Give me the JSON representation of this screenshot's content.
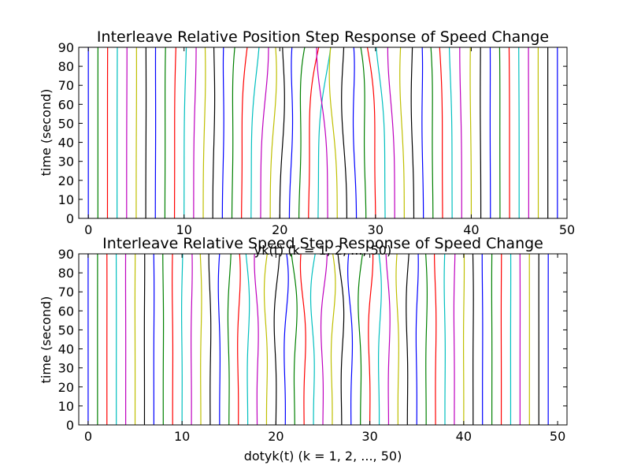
{
  "chart_data": [
    {
      "type": "line",
      "title": "Interleave Relative Position Step Response of Speed Change",
      "xlabel": "yk(t) (k = 1, 2, ..., 50)",
      "ylabel": "time (second)",
      "xlim": [
        -1,
        50
      ],
      "ylim": [
        0,
        90
      ],
      "xticks": [
        "0",
        "10",
        "20",
        "30",
        "40",
        "50"
      ],
      "yticks": [
        "0",
        "10",
        "20",
        "30",
        "40",
        "50",
        "60",
        "70",
        "80",
        "90"
      ],
      "grid": false,
      "series_count": 50,
      "series_colors": [
        "#0000ff",
        "#008000",
        "#ff0000",
        "#00bfbf",
        "#bf00bf",
        "#bfbf00",
        "#000000"
      ],
      "curve_description": "series k (k=1..50) is a near-vertical line starting at x=k-1; lines in the middle region deviate toward the center as time increases",
      "max_deviation": 1.1
    },
    {
      "type": "line",
      "title": "Interleave Relative Speed Step Response of Speed Change",
      "xlabel": "dotyk(t) (k = 1, 2, ..., 50)",
      "ylabel": "time (second)",
      "xlim": [
        -1,
        51
      ],
      "ylim": [
        0,
        90
      ],
      "xticks": [
        "0",
        "10",
        "20",
        "30",
        "40",
        "50"
      ],
      "yticks": [
        "0",
        "10",
        "20",
        "30",
        "40",
        "50",
        "60",
        "70",
        "80",
        "90"
      ],
      "grid": false,
      "series_count": 50,
      "series_colors": [
        "#0000ff",
        "#008000",
        "#ff0000",
        "#00bfbf",
        "#bf00bf",
        "#bfbf00",
        "#000000"
      ],
      "curve_description": "series k (k=1..50) is a near-vertical line at x=k-1 with small wiggles for the middle series",
      "max_deviation": 0.45
    }
  ]
}
